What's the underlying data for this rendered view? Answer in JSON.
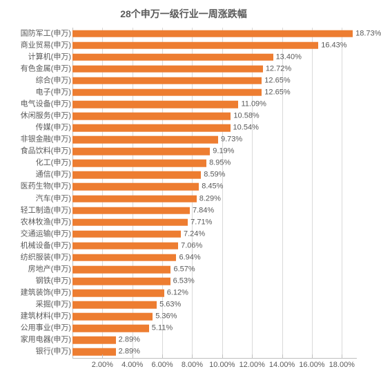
{
  "chart": {
    "type": "bar",
    "orientation": "horizontal",
    "title": "28个申万一级行业一周涨跌幅",
    "title_fontsize": 14,
    "title_color": "#595959",
    "background_color": "#ffffff",
    "bar_color": "#ed7d31",
    "grid_color": "#d9d9d9",
    "axis_color": "#bfbfbf",
    "text_color": "#595959",
    "label_fontsize": 11,
    "value_label_fontsize": 11,
    "tick_fontsize": 11,
    "x_axis": {
      "min": 0,
      "max": 19,
      "tick_start": 2,
      "tick_step": 2,
      "tick_format_suffix": ".00%",
      "ticks": [
        2,
        4,
        6,
        8,
        10,
        12,
        14,
        16,
        18
      ]
    },
    "bar_thickness_ratio": 0.62,
    "categories": [
      "国防军工(申万)",
      "商业贸易(申万)",
      "计算机(申万)",
      "有色金属(申万)",
      "综合(申万)",
      "电子(申万)",
      "电气设备(申万)",
      "休闲服务(申万)",
      "传媒(申万)",
      "非银金融(申万)",
      "食品饮料(申万)",
      "化工(申万)",
      "通信(申万)",
      "医药生物(申万)",
      "汽车(申万)",
      "轻工制造(申万)",
      "农林牧渔(申万)",
      "交通运输(申万)",
      "机械设备(申万)",
      "纺织服装(申万)",
      "房地产(申万)",
      "钢铁(申万)",
      "建筑装饰(申万)",
      "采掘(申万)",
      "建筑材料(申万)",
      "公用事业(申万)",
      "家用电器(申万)",
      "银行(申万)"
    ],
    "values": [
      18.73,
      16.43,
      13.4,
      12.72,
      12.65,
      12.65,
      11.09,
      10.58,
      10.54,
      9.73,
      9.19,
      8.95,
      8.59,
      8.45,
      8.29,
      7.84,
      7.71,
      7.24,
      7.06,
      6.94,
      6.57,
      6.53,
      6.12,
      5.63,
      5.36,
      5.11,
      2.89,
      2.89
    ],
    "value_labels": [
      "18.73%",
      "16.43%",
      "13.40%",
      "12.72%",
      "12.65%",
      "12.65%",
      "11.09%",
      "10.58%",
      "10.54%",
      "9.73%",
      "9.19%",
      "8.95%",
      "8.59%",
      "8.45%",
      "8.29%",
      "7.84%",
      "7.71%",
      "7.24%",
      "7.06%",
      "6.94%",
      "6.57%",
      "6.53%",
      "6.12%",
      "5.63%",
      "5.36%",
      "5.11%",
      "2.89%",
      "2.89%"
    ]
  }
}
